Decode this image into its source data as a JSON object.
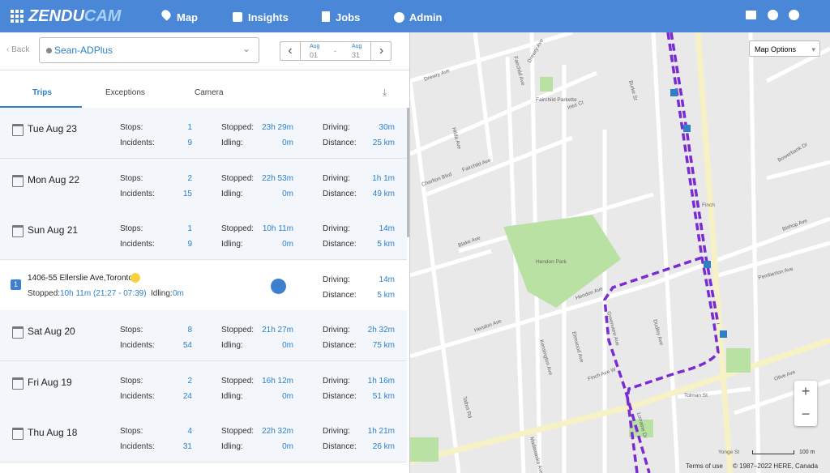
{
  "nav": {
    "logo_main": "ZENDU",
    "logo_accent": "CAM",
    "items": [
      "Map",
      "Insights",
      "Jobs",
      "Admin"
    ]
  },
  "toolbar": {
    "back": "Back",
    "vehicle": "Sean-ADPlus",
    "date_from": {
      "month": "Aug",
      "day": "01"
    },
    "separator": "-",
    "date_to": {
      "month": "Aug",
      "day": "31"
    }
  },
  "tabs": [
    "Trips",
    "Exceptions",
    "Camera"
  ],
  "labels": {
    "stops": "Stops:",
    "incidents": "Incidents:",
    "stopped": "Stopped:",
    "idling": "Idling:",
    "driving": "Driving:",
    "distance": "Distance:"
  },
  "trips": [
    {
      "date": "Tue Aug 23",
      "stops": "1",
      "incidents": "9",
      "stopped": "23h 29m",
      "idling": "0m",
      "driving": "30m",
      "distance": "25 km"
    },
    {
      "date": "Mon Aug 22",
      "stops": "2",
      "incidents": "15",
      "stopped": "22h 53m",
      "idling": "0m",
      "driving": "1h 1m",
      "distance": "49 km"
    },
    {
      "date": "Sun Aug 21",
      "stops": "1",
      "incidents": "9",
      "stopped": "10h 11m",
      "idling": "0m",
      "driving": "14m",
      "distance": "5 km"
    },
    {
      "date": "Sat Aug 20",
      "stops": "8",
      "incidents": "54",
      "stopped": "21h 27m",
      "idling": "0m",
      "driving": "2h 32m",
      "distance": "75 km"
    },
    {
      "date": "Fri Aug 19",
      "stops": "2",
      "incidents": "24",
      "stopped": "16h 12m",
      "idling": "0m",
      "driving": "1h 16m",
      "distance": "51 km"
    },
    {
      "date": "Thu Aug 18",
      "stops": "4",
      "incidents": "31",
      "stopped": "22h 32m",
      "idling": "0m",
      "driving": "1h 21m",
      "distance": "26 km"
    }
  ],
  "stop_detail": {
    "index": "1",
    "address": "1406-55 Ellerslie Ave,Toronto",
    "stopped": "10h 11m (21:27 - 07:39)",
    "idling": "0m",
    "driving": "14m",
    "distance": "5 km"
  },
  "map": {
    "options": "Map Options",
    "zoom_in": "+",
    "zoom_out": "−",
    "scale": "100 m",
    "terms": "Terms of use",
    "copyright": "© 1987–2022 HERE, Canada",
    "labels": [
      "Drewry Ave",
      "Drewry Ave",
      "Fairchild Ave",
      "Fairchild Parkette",
      "Inez Ct",
      "Burke St",
      "Hilda Ave",
      "Fairchild Ave",
      "Charlton Blvd",
      "Blake Ave",
      "Hendon Park",
      "Hendon Ave",
      "Hendon Ave",
      "Kensington Ave",
      "Talbot Rd",
      "Elmwood Ave",
      "Greenview Ave",
      "Dudley Ave",
      "Finch Ave W",
      "Finch",
      "Tolman St",
      "Lorraine Dr",
      "Olive Ave",
      "Pemberton Ave",
      "Bishop Ave",
      "Bowerbank Dr",
      "Madawaska Ave",
      "Yonge St"
    ]
  }
}
